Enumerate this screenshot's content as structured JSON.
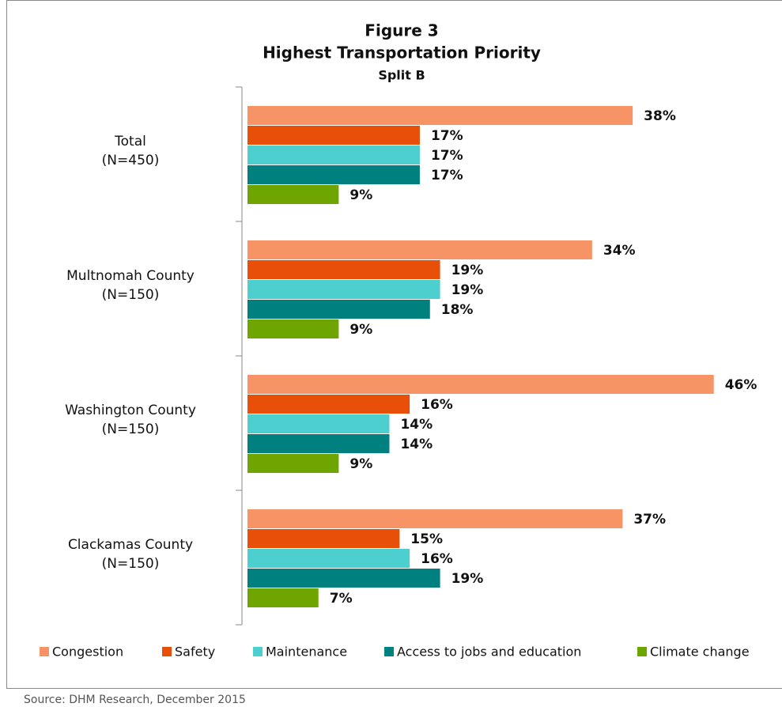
{
  "chart_data": {
    "type": "bar",
    "orientation": "horizontal",
    "title": "Figure 3",
    "subtitle": "Highest Transportation Priority",
    "subtitle2": "Split B",
    "categories": [
      "Total\n(N=450)",
      "Multnomah County\n(N=150)",
      "Washington County\n(N=150)",
      "Clackamas County\n(N=150)"
    ],
    "series": [
      {
        "name": "Congestion",
        "color": "#f79465",
        "values": [
          38,
          34,
          46,
          37
        ],
        "value_labels": [
          "38%",
          "34%",
          "46%",
          "37%"
        ]
      },
      {
        "name": "Safety",
        "color": "#e8500a",
        "values": [
          17,
          19,
          16,
          15
        ],
        "value_labels": [
          "17%",
          "19%",
          "16%",
          "15%"
        ]
      },
      {
        "name": "Maintenance",
        "color": "#4ecfcf",
        "values": [
          17,
          19,
          14,
          16
        ],
        "value_labels": [
          "17%",
          "19%",
          "14%",
          "16%"
        ]
      },
      {
        "name": "Access to jobs and education",
        "color": "#00807f",
        "values": [
          17,
          18,
          14,
          19
        ],
        "value_labels": [
          "17%",
          "18%",
          "14%",
          "19%"
        ]
      },
      {
        "name": "Climate change",
        "color": "#6fa500",
        "values": [
          9,
          9,
          9,
          7
        ],
        "value_labels": [
          "9%",
          "9%",
          "9%",
          "7%"
        ]
      }
    ],
    "legend": "bottom",
    "source": "Source: DHM Research, December 2015"
  }
}
